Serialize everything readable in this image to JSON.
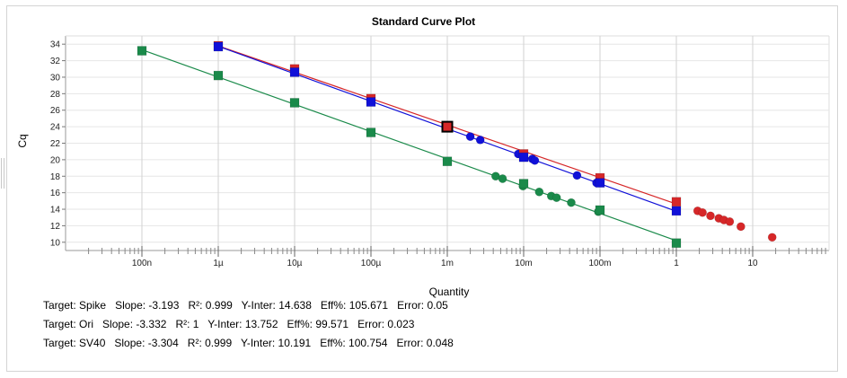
{
  "chart_data": {
    "type": "scatter",
    "title": "Standard Curve Plot",
    "xlabel": "Quantity",
    "ylabel": "Cq",
    "x_scale": "log",
    "xlim": [
      1e-08,
      100
    ],
    "ylim": [
      9,
      35
    ],
    "x_tick_labels": [
      {
        "value": 1e-07,
        "label": "100n"
      },
      {
        "value": 1e-06,
        "label": "1µ"
      },
      {
        "value": 1e-05,
        "label": "10µ"
      },
      {
        "value": 0.0001,
        "label": "100µ"
      },
      {
        "value": 0.001,
        "label": "1m"
      },
      {
        "value": 0.01,
        "label": "10m"
      },
      {
        "value": 0.1,
        "label": "100m"
      },
      {
        "value": 1,
        "label": "1"
      },
      {
        "value": 10,
        "label": "10"
      }
    ],
    "y_ticks": [
      10,
      12,
      14,
      16,
      18,
      20,
      22,
      24,
      26,
      28,
      30,
      32,
      34
    ],
    "grid": true,
    "series": [
      {
        "name": "Spike",
        "color": "#d62728",
        "fit_line": {
          "slope": -3.193,
          "intercept": 14.638,
          "x_range": [
            1e-06,
            1
          ]
        },
        "standards": [
          [
            1e-06,
            33.8
          ],
          [
            1e-05,
            31.0
          ],
          [
            0.0001,
            27.4
          ],
          [
            0.001,
            24.1
          ],
          [
            0.01,
            20.7
          ],
          [
            0.1,
            17.8
          ],
          [
            1,
            14.9
          ]
        ],
        "unknowns": [
          [
            1.9,
            13.8
          ],
          [
            2.2,
            13.6
          ],
          [
            2.8,
            13.2
          ],
          [
            3.6,
            12.9
          ],
          [
            4.2,
            12.7
          ],
          [
            5.0,
            12.5
          ],
          [
            7.0,
            11.9
          ],
          [
            18.0,
            10.6
          ]
        ]
      },
      {
        "name": "Ori",
        "color": "#1010d8",
        "fit_line": {
          "slope": -3.332,
          "intercept": 13.752,
          "x_range": [
            1e-06,
            1
          ]
        },
        "standards": [
          [
            1e-06,
            33.7
          ],
          [
            1e-05,
            30.6
          ],
          [
            0.0001,
            27.0
          ],
          [
            0.001,
            23.9
          ],
          [
            0.01,
            20.3
          ],
          [
            0.1,
            17.2
          ],
          [
            1,
            13.8
          ]
        ],
        "unknowns": [
          [
            0.002,
            22.8
          ],
          [
            0.0027,
            22.4
          ],
          [
            0.0085,
            20.7
          ],
          [
            0.013,
            20.1
          ],
          [
            0.014,
            19.9
          ],
          [
            0.05,
            18.1
          ],
          [
            0.09,
            17.2
          ]
        ]
      },
      {
        "name": "SV40",
        "color": "#1a8a4a",
        "fit_line": {
          "slope": -3.304,
          "intercept": 10.191,
          "x_range": [
            1e-07,
            1
          ]
        },
        "standards": [
          [
            1e-07,
            33.2
          ],
          [
            1e-06,
            30.2
          ],
          [
            1e-05,
            26.9
          ],
          [
            0.0001,
            23.3
          ],
          [
            0.001,
            19.8
          ],
          [
            0.01,
            17.1
          ],
          [
            0.1,
            13.9
          ],
          [
            1,
            9.9
          ]
        ],
        "unknowns": [
          [
            0.0043,
            18.0
          ],
          [
            0.0053,
            17.7
          ],
          [
            0.0098,
            16.8
          ],
          [
            0.016,
            16.1
          ],
          [
            0.023,
            15.6
          ],
          [
            0.027,
            15.4
          ],
          [
            0.042,
            14.8
          ],
          [
            0.095,
            13.7
          ]
        ]
      }
    ],
    "highlight": {
      "x": 0.001,
      "y": 24.0,
      "color": "#d62728"
    }
  },
  "stats": [
    {
      "target": "Target: Spike",
      "slope": "Slope: -3.193",
      "r2": "R²: 0.999",
      "yinter": "Y-Inter: 14.638",
      "eff": "Eff%: 105.671",
      "error": "Error: 0.05"
    },
    {
      "target": "Target: Ori",
      "slope": "Slope: -3.332",
      "r2": "R²: 1",
      "yinter": "Y-Inter: 13.752",
      "eff": "Eff%: 99.571",
      "error": "Error: 0.023"
    },
    {
      "target": "Target: SV40",
      "slope": "Slope: -3.304",
      "r2": "R²: 0.999",
      "yinter": "Y-Inter: 10.191",
      "eff": "Eff%: 100.754",
      "error": "Error: 0.048"
    }
  ]
}
